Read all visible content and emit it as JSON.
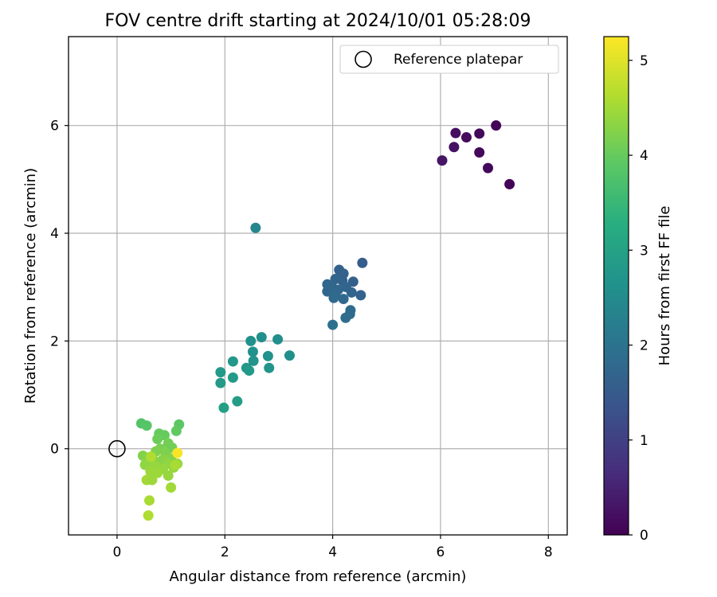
{
  "chart_data": {
    "type": "scatter",
    "title": "FOV centre drift starting at 2024/10/01 05:28:09",
    "xlabel": "Angular distance from reference (arcmin)",
    "ylabel": "Rotation from reference (arcmin)",
    "xlim": [
      -0.9,
      8.35
    ],
    "ylim": [
      -1.6,
      7.65
    ],
    "xticks": [
      0,
      2,
      4,
      6,
      8
    ],
    "yticks": [
      0,
      2,
      4,
      6
    ],
    "grid": true,
    "legend": {
      "position": "top-right",
      "entries": [
        "Reference platepar"
      ]
    },
    "reference": {
      "x": 0,
      "y": 0,
      "label": "Reference platepar"
    },
    "colorbar": {
      "label": "Hours from first FF file",
      "colormap": "viridis",
      "range": [
        0,
        5.25
      ],
      "ticks": [
        0,
        1,
        2,
        3,
        4,
        5
      ]
    },
    "series": [
      {
        "points": [
          [
            7.03,
            6.0,
            0.05
          ],
          [
            6.28,
            5.86,
            0.2
          ],
          [
            6.72,
            5.85,
            0.1
          ],
          [
            6.48,
            5.78,
            0.15
          ],
          [
            6.25,
            5.6,
            0.25
          ],
          [
            6.72,
            5.5,
            0.12
          ],
          [
            6.03,
            5.35,
            0.3
          ],
          [
            6.88,
            5.21,
            0.1
          ],
          [
            7.28,
            4.91,
            0.05
          ],
          [
            4.55,
            3.45,
            1.55
          ],
          [
            4.12,
            3.32,
            1.6
          ],
          [
            4.2,
            3.25,
            1.65
          ],
          [
            4.05,
            3.15,
            1.7
          ],
          [
            4.18,
            3.12,
            1.65
          ],
          [
            4.38,
            3.1,
            1.6
          ],
          [
            3.9,
            3.05,
            1.7
          ],
          [
            3.98,
            3.02,
            1.75
          ],
          [
            4.25,
            3.0,
            1.7
          ],
          [
            4.1,
            2.95,
            1.72
          ],
          [
            3.9,
            2.92,
            1.75
          ],
          [
            4.35,
            2.9,
            1.7
          ],
          [
            4.05,
            2.88,
            1.78
          ],
          [
            4.52,
            2.85,
            1.65
          ],
          [
            4.02,
            2.8,
            1.8
          ],
          [
            4.2,
            2.78,
            1.78
          ],
          [
            4.33,
            2.57,
            1.8
          ],
          [
            4.32,
            2.5,
            1.82
          ],
          [
            4.24,
            2.43,
            1.85
          ],
          [
            4.0,
            2.3,
            1.9
          ],
          [
            2.57,
            4.1,
            2.4
          ],
          [
            2.68,
            2.07,
            2.6
          ],
          [
            2.48,
            2.0,
            2.62
          ],
          [
            2.98,
            2.03,
            2.58
          ],
          [
            2.52,
            1.8,
            2.65
          ],
          [
            3.2,
            1.73,
            2.6
          ],
          [
            2.8,
            1.72,
            2.65
          ],
          [
            2.53,
            1.63,
            2.7
          ],
          [
            2.15,
            1.62,
            2.75
          ],
          [
            2.4,
            1.5,
            2.75
          ],
          [
            2.82,
            1.5,
            2.7
          ],
          [
            2.45,
            1.45,
            2.8
          ],
          [
            1.92,
            1.42,
            2.8
          ],
          [
            2.15,
            1.32,
            2.82
          ],
          [
            1.92,
            1.22,
            2.85
          ],
          [
            2.23,
            0.88,
            2.9
          ],
          [
            1.98,
            0.76,
            2.95
          ],
          [
            0.45,
            0.47,
            3.8
          ],
          [
            0.55,
            0.43,
            3.85
          ],
          [
            1.15,
            0.45,
            3.9
          ],
          [
            1.1,
            0.33,
            3.95
          ],
          [
            0.78,
            0.28,
            4.0
          ],
          [
            0.88,
            0.25,
            4.0
          ],
          [
            0.75,
            0.18,
            4.05
          ],
          [
            0.95,
            0.1,
            4.1
          ],
          [
            1.02,
            0.02,
            4.1
          ],
          [
            0.8,
            0.0,
            4.15
          ],
          [
            0.72,
            -0.05,
            4.2
          ],
          [
            0.9,
            -0.08,
            4.2
          ],
          [
            0.48,
            -0.13,
            4.25
          ],
          [
            0.62,
            -0.15,
            4.3
          ],
          [
            1.0,
            -0.18,
            4.25
          ],
          [
            0.85,
            -0.2,
            4.3
          ],
          [
            0.68,
            -0.22,
            4.35
          ],
          [
            0.78,
            -0.25,
            4.3
          ],
          [
            0.95,
            -0.28,
            4.35
          ],
          [
            1.12,
            -0.28,
            4.4
          ],
          [
            0.52,
            -0.3,
            4.35
          ],
          [
            0.7,
            -0.32,
            4.4
          ],
          [
            1.05,
            -0.35,
            4.4
          ],
          [
            0.85,
            -0.38,
            4.4
          ],
          [
            0.62,
            -0.42,
            4.45
          ],
          [
            0.75,
            -0.45,
            4.45
          ],
          [
            0.95,
            -0.5,
            4.4
          ],
          [
            0.6,
            -0.55,
            4.45
          ],
          [
            0.55,
            -0.58,
            4.5
          ],
          [
            0.65,
            -0.58,
            4.45
          ],
          [
            1.0,
            -0.72,
            4.5
          ],
          [
            0.6,
            -0.96,
            4.55
          ],
          [
            0.58,
            -1.24,
            4.6
          ],
          [
            1.08,
            -0.3,
            4.55
          ],
          [
            0.63,
            -0.15,
            4.6
          ],
          [
            1.12,
            -0.08,
            5.2
          ]
        ]
      }
    ]
  }
}
